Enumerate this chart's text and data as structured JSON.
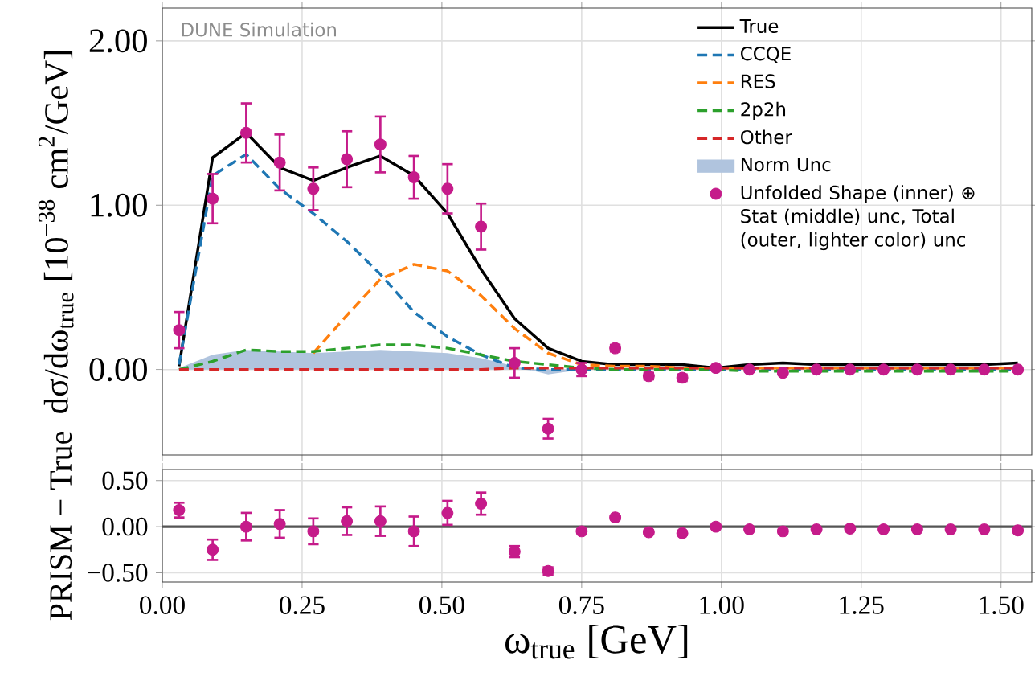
{
  "chart_data": [
    {
      "type": "line",
      "ylabel": "dσ/dω$_{true}$ [10$^{−38}$ cm$^{2}$/GeV]",
      "annotations": [
        "DUNE Simulation"
      ],
      "x": [
        0.03,
        0.09,
        0.15,
        0.21,
        0.27,
        0.33,
        0.39,
        0.45,
        0.51,
        0.57,
        0.63,
        0.69,
        0.75,
        0.81,
        0.87,
        0.93,
        0.99,
        1.05,
        1.11,
        1.17,
        1.23,
        1.29,
        1.35,
        1.41,
        1.47,
        1.53
      ],
      "xlim": [
        0,
        1.555
      ],
      "ylim": [
        -0.52,
        2.2
      ],
      "xticks": [
        {
          "value": 0,
          "label": null
        },
        {
          "value": 0.25,
          "label": null
        },
        {
          "value": 0.5,
          "label": null
        },
        {
          "value": 0.75,
          "label": null
        },
        {
          "value": 1,
          "label": null
        },
        {
          "value": 1.25,
          "label": null
        },
        {
          "value": 1.5,
          "label": null
        }
      ],
      "yticks": [
        {
          "value": 0,
          "label": "0.00"
        },
        {
          "value": 1,
          "label": "1.00"
        },
        {
          "value": 2,
          "label": "2.00"
        }
      ],
      "tick_labels": "y",
      "grid": true,
      "legend": "top right",
      "series": [
        {
          "name": "True",
          "color": "#000000",
          "line_style": "solid",
          "values": [
            0.02,
            1.29,
            1.44,
            1.23,
            1.15,
            1.23,
            1.3,
            1.18,
            0.95,
            0.61,
            0.31,
            0.13,
            0.05,
            0.03,
            0.03,
            0.03,
            0.01,
            0.03,
            0.04,
            0.03,
            0.03,
            0.03,
            0.03,
            0.03,
            0.03,
            0.04
          ]
        },
        {
          "name": "CCQE",
          "color": "#1f77b4",
          "line_style": "dashed",
          "values": [
            0.03,
            1.18,
            1.31,
            1.1,
            0.95,
            0.78,
            0.58,
            0.35,
            0.2,
            0.09,
            0.01,
            0.0,
            0.0,
            0.0,
            0.0,
            0.0,
            0.0,
            0.0,
            0.0,
            0.0,
            0.0,
            0.0,
            0.0,
            0.0,
            0.0,
            0.0
          ]
        },
        {
          "name": "RES",
          "color": "#ff7f0e",
          "line_style": "dashed",
          "values": [
            null,
            null,
            null,
            null,
            0.1,
            0.33,
            0.55,
            0.64,
            0.6,
            0.45,
            0.25,
            0.1,
            0.03,
            0.02,
            0.02,
            0.01,
            0.01,
            0.01,
            0.01,
            0.01,
            0.01,
            0.01,
            0.01,
            0.01,
            0.01,
            0.01
          ]
        },
        {
          "name": "2p2h",
          "color": "#2ca02c",
          "line_style": "dashed",
          "values": [
            0.0,
            0.05,
            0.12,
            0.11,
            0.11,
            0.13,
            0.15,
            0.15,
            0.13,
            0.09,
            0.05,
            0.03,
            0.01,
            0.0,
            0.0,
            0.0,
            0.0,
            -0.01,
            -0.01,
            -0.01,
            -0.01,
            -0.01,
            -0.01,
            -0.01,
            -0.01,
            -0.01
          ]
        },
        {
          "name": "Other",
          "color": "#d62728",
          "line_style": "dashed",
          "values": [
            0.0,
            0.0,
            0.0,
            0.0,
            0.0,
            0.0,
            0.0,
            0.0,
            0.0,
            0.0,
            0.01,
            0.01,
            0.01,
            0.01,
            0.01,
            0.01,
            0.01,
            0.01,
            0.01,
            0.01,
            0.01,
            0.01,
            0.01,
            0.01,
            0.01,
            0.01
          ]
        },
        {
          "name": "Norm Unc",
          "type": "area",
          "color": "#b0c4de",
          "values": [
            0.01,
            0.09,
            0.12,
            0.11,
            0.1,
            0.11,
            0.12,
            0.11,
            0.1,
            0.07,
            0.02,
            -0.03,
            0.0,
            0.01,
            0.01,
            0.01,
            0.01,
            0.01,
            0.01,
            0.01,
            0.01,
            0.01,
            0.01,
            0.01,
            0.01,
            0.01
          ]
        },
        {
          "name": "Unfolded Shape (inner) ⊕ Stat (middle) unc, Total (outer, lighter color) unc",
          "type": "scatter",
          "color": "#c51b8a",
          "values": [
            0.24,
            1.04,
            1.44,
            1.26,
            1.1,
            1.28,
            1.37,
            1.17,
            1.1,
            0.87,
            0.04,
            -0.36,
            0.0,
            0.13,
            -0.04,
            -0.05,
            0.01,
            0.0,
            -0.02,
            0.0,
            0.0,
            0.0,
            0.0,
            0.0,
            0.0,
            0.0
          ],
          "errors": [
            0.11,
            0.15,
            0.18,
            0.17,
            0.13,
            0.17,
            0.17,
            0.13,
            0.15,
            0.14,
            0.09,
            0.06,
            0.04,
            0.02,
            0.02,
            0.02,
            0.01,
            0.01,
            0.01,
            0.01,
            0.01,
            0.01,
            0.01,
            0.01,
            0.01,
            0.01
          ]
        }
      ]
    },
    {
      "type": "scatter",
      "ylabel": "PRISM − True",
      "xlabel": "ω$_{true}$ [GeV]",
      "x": [
        0.03,
        0.09,
        0.15,
        0.21,
        0.27,
        0.33,
        0.39,
        0.45,
        0.51,
        0.57,
        0.63,
        0.69,
        0.75,
        0.81,
        0.87,
        0.93,
        0.99,
        1.05,
        1.11,
        1.17,
        1.23,
        1.29,
        1.35,
        1.41,
        1.47,
        1.53
      ],
      "xlim": [
        0,
        1.555
      ],
      "ylim": [
        -0.6,
        0.62
      ],
      "xticks": [
        {
          "value": 0,
          "label": "0.00"
        },
        {
          "value": 0.25,
          "label": "0.25"
        },
        {
          "value": 0.5,
          "label": "0.50"
        },
        {
          "value": 0.75,
          "label": "0.75"
        },
        {
          "value": 1,
          "label": "1.00"
        },
        {
          "value": 1.25,
          "label": "1.25"
        },
        {
          "value": 1.5,
          "label": "1.50"
        }
      ],
      "yticks": [
        {
          "value": -0.5,
          "label": "−0.50"
        },
        {
          "value": 0,
          "label": "0.00"
        },
        {
          "value": 0.5,
          "label": "0.50"
        }
      ],
      "grid": true,
      "ref_lines": [
        {
          "axis": "y",
          "value": 0,
          "color": "#555555"
        }
      ],
      "series": [
        {
          "color": "#c51b8a",
          "values": [
            0.18,
            -0.25,
            0.0,
            0.03,
            -0.05,
            0.06,
            0.06,
            -0.05,
            0.15,
            0.25,
            -0.27,
            -0.48,
            -0.05,
            0.1,
            -0.06,
            -0.07,
            0.0,
            -0.03,
            -0.05,
            -0.03,
            -0.02,
            -0.03,
            -0.03,
            -0.03,
            -0.03,
            -0.04
          ],
          "errors": [
            0.08,
            0.11,
            0.15,
            0.15,
            0.14,
            0.15,
            0.16,
            0.16,
            0.13,
            0.12,
            0.06,
            0.04,
            0.02,
            0.02,
            0.02,
            0.02,
            0.01,
            0.01,
            0.01,
            0.01,
            0.01,
            0.01,
            0.01,
            0.01,
            0.01,
            0.01
          ]
        }
      ]
    }
  ]
}
